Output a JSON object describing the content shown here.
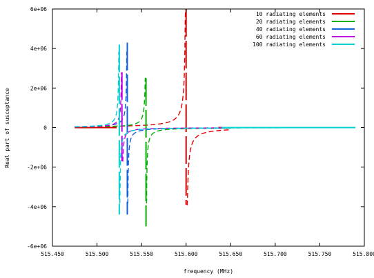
{
  "chart_data": {
    "type": "line",
    "title": "",
    "xlabel": "frequency (MHz)",
    "ylabel": "Real part of susceptance",
    "xlim": [
      515.45,
      515.8
    ],
    "ylim": [
      -6000000.0,
      6000000.0
    ],
    "x_ticks": [
      {
        "value": 515.45,
        "label": "515.450"
      },
      {
        "value": 515.5,
        "label": "515.500"
      },
      {
        "value": 515.55,
        "label": "515.550"
      },
      {
        "value": 515.6,
        "label": "515.600"
      },
      {
        "value": 515.65,
        "label": "515.650"
      },
      {
        "value": 515.7,
        "label": "515.700"
      },
      {
        "value": 515.75,
        "label": "515.750"
      },
      {
        "value": 515.8,
        "label": "515.800"
      }
    ],
    "y_ticks": [
      {
        "value": -6000000.0,
        "label": "-6e+06"
      },
      {
        "value": -4000000.0,
        "label": "-4e+06"
      },
      {
        "value": -2000000.0,
        "label": "-2e+06"
      },
      {
        "value": 0,
        "label": "0"
      },
      {
        "value": 2000000.0,
        "label": "2e+06"
      },
      {
        "value": 4000000.0,
        "label": "4e+06"
      },
      {
        "value": 6000000.0,
        "label": "6e+06"
      }
    ],
    "grid": false,
    "legend_position": "top-right",
    "series": [
      {
        "name": "10 radiating elements",
        "color": "#e00000",
        "resonance": 515.6,
        "peak_pos": 6000000.0,
        "peak_neg": -3900000.0,
        "amplitude": 5500,
        "x_start": 515.475,
        "x_end": 515.65,
        "flat_segments": [
          [
            515.475,
            515.522
          ],
          [
            515.636,
            515.648
          ]
        ]
      },
      {
        "name": "20 radiating elements",
        "color": "#00b000",
        "resonance": 515.555,
        "peak_pos": 2500000.0,
        "peak_neg": -5000000.0,
        "amplitude": 2300,
        "x_start": 515.475,
        "x_end": 515.65,
        "flat_segments": []
      },
      {
        "name": "40 radiating elements",
        "color": "#1060e0",
        "resonance": 515.534,
        "peak_pos": 4300000.0,
        "peak_neg": -4400000.0,
        "amplitude": 2300,
        "x_start": 515.475,
        "x_end": 515.65,
        "flat_segments": []
      },
      {
        "name": "60 radiating elements",
        "color": "#c000e0",
        "resonance": 515.528,
        "peak_pos": 2800000.0,
        "peak_neg": -1700000.0,
        "amplitude": 1700,
        "x_start": 515.475,
        "x_end": 515.65,
        "flat_segments": []
      },
      {
        "name": "100 radiating elements",
        "color": "#00d0d0",
        "resonance": 515.525,
        "peak_pos": 4200000.0,
        "peak_neg": -4400000.0,
        "amplitude": 2300,
        "x_start": 515.475,
        "x_end": 515.79,
        "flat_segments": [
          [
            515.64,
            515.79
          ]
        ]
      }
    ]
  }
}
